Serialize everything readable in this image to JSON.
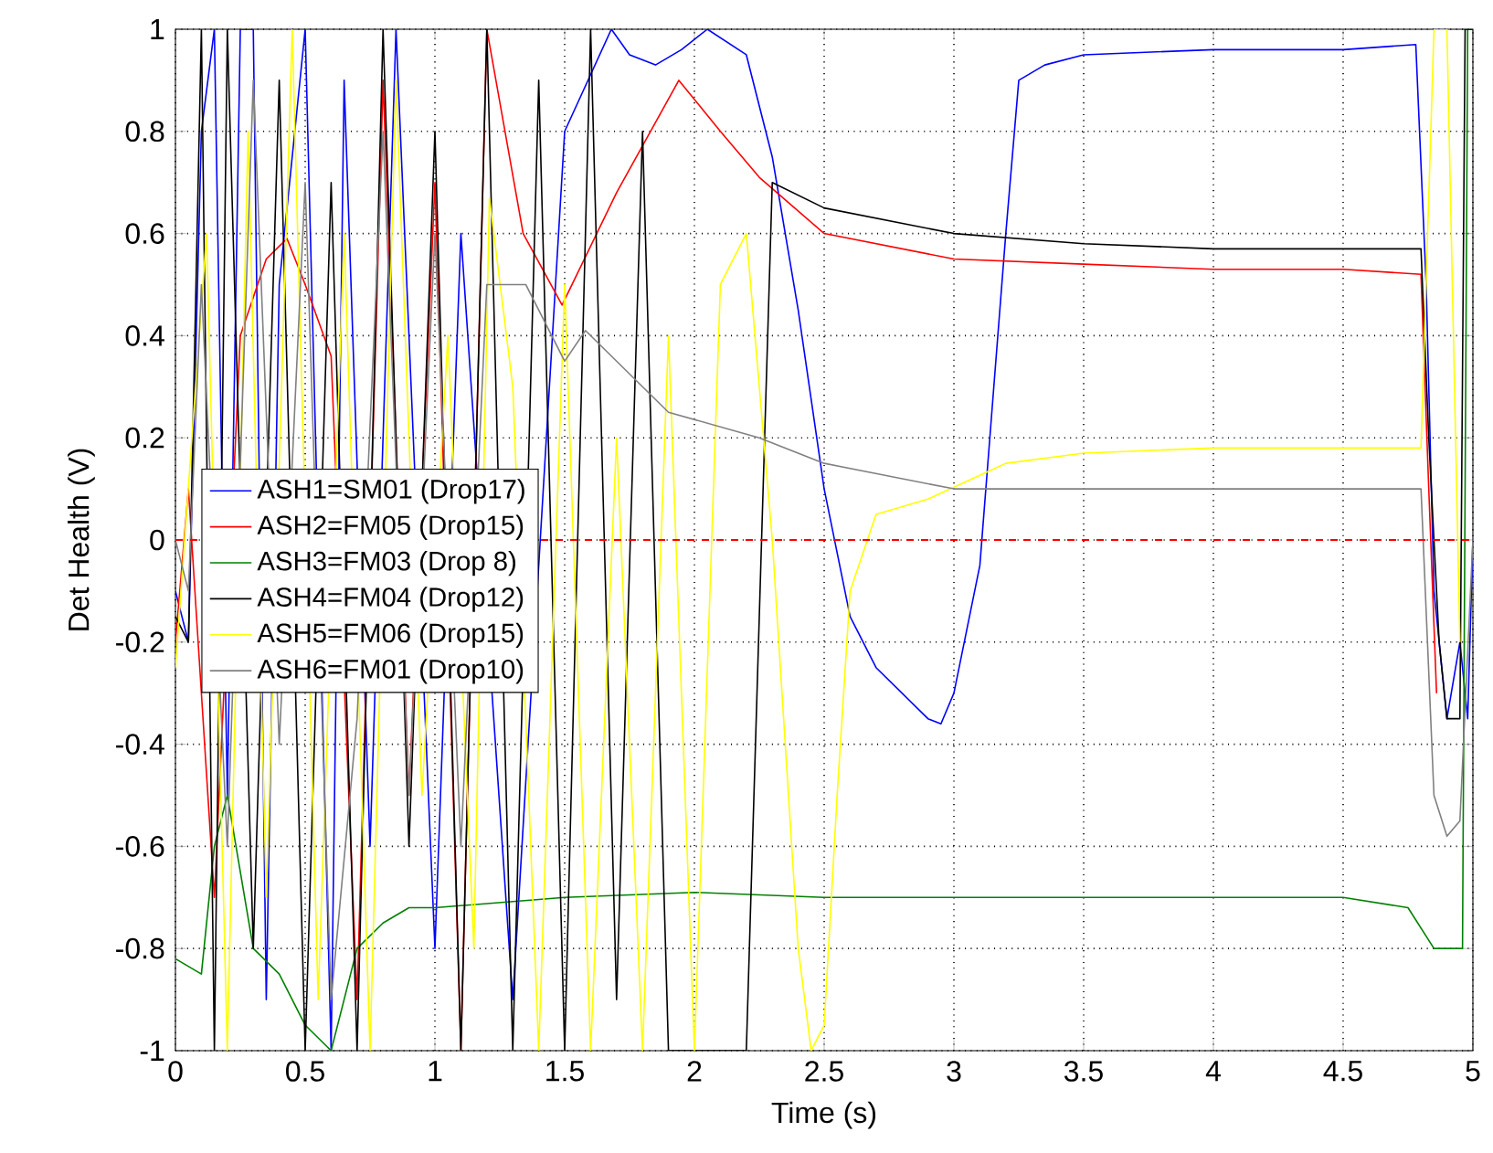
{
  "chart_data": {
    "type": "line",
    "xlabel": "Time (s)",
    "ylabel": "Det Health (V)",
    "xlim": [
      0,
      5
    ],
    "ylim": [
      -1,
      1
    ],
    "xticks": [
      0,
      0.5,
      1,
      1.5,
      2,
      2.5,
      3,
      3.5,
      4,
      4.5,
      5
    ],
    "yticks": [
      -1,
      -0.8,
      -0.6,
      -0.4,
      -0.2,
      0,
      0.2,
      0.4,
      0.6,
      0.8,
      1
    ],
    "grid": true,
    "legend": "left",
    "line_style": "solid",
    "ref_lines": [
      {
        "axis": "y",
        "value": 0,
        "color": "#ff0000",
        "line_style": "dashed"
      }
    ],
    "series": [
      {
        "name": "ASH1=SM01 (Drop17)",
        "color": "#0000ff",
        "x": [
          0,
          0.05,
          0.1,
          0.15,
          0.2,
          0.25,
          0.3,
          0.35,
          0.4,
          0.5,
          0.6,
          0.65,
          0.75,
          0.85,
          1.0,
          1.1,
          1.3,
          1.5,
          1.68,
          1.75,
          1.85,
          1.95,
          2.05,
          2.2,
          2.3,
          2.4,
          2.5,
          2.6,
          2.7,
          2.8,
          2.9,
          2.95,
          3.0,
          3.1,
          3.2,
          3.25,
          3.35,
          3.5,
          4.0,
          4.5,
          4.78,
          4.82,
          4.85,
          4.9,
          4.95,
          4.98,
          5.0
        ],
        "values": [
          -0.1,
          -0.2,
          0.8,
          1,
          -0.5,
          1,
          1,
          -0.9,
          0.5,
          1,
          -1,
          0.9,
          -0.6,
          1,
          -0.8,
          0.6,
          -0.9,
          0.8,
          1,
          0.95,
          0.93,
          0.96,
          1,
          0.95,
          0.75,
          0.45,
          0.1,
          -0.15,
          -0.25,
          -0.3,
          -0.35,
          -0.36,
          -0.3,
          -0.05,
          0.6,
          0.9,
          0.93,
          0.95,
          0.96,
          0.96,
          0.97,
          0.5,
          -0.1,
          -0.35,
          -0.2,
          -0.35,
          0
        ]
      },
      {
        "name": "ASH2=FM05 (Drop15)",
        "color": "#ff0000",
        "x": [
          0,
          0.05,
          0.15,
          0.25,
          0.35,
          0.43,
          0.5,
          0.6,
          0.7,
          0.8,
          0.9,
          1.0,
          1.1,
          1.2,
          1.34,
          1.49,
          1.7,
          1.94,
          2.1,
          2.25,
          2.5,
          3.0,
          3.5,
          4.0,
          4.5,
          4.8,
          4.83,
          4.86
        ],
        "values": [
          -0.2,
          0.1,
          -0.7,
          0.4,
          0.55,
          0.59,
          0.5,
          0.36,
          -0.9,
          0.9,
          -0.5,
          0.7,
          -1,
          1,
          0.6,
          0.46,
          0.68,
          0.9,
          0.8,
          0.71,
          0.6,
          0.55,
          0.54,
          0.53,
          0.53,
          0.52,
          0.1,
          -0.3
        ]
      },
      {
        "name": "ASH3=FM03 (Drop 8)",
        "color": "#008000",
        "x": [
          0,
          0.1,
          0.15,
          0.2,
          0.3,
          0.4,
          0.5,
          0.6,
          0.7,
          0.8,
          0.9,
          1.0,
          1.5,
          2.0,
          2.5,
          3.0,
          3.5,
          4.0,
          4.5,
          4.75,
          4.85,
          4.96,
          4.98,
          5.0
        ],
        "values": [
          -0.82,
          -0.85,
          -0.6,
          -0.5,
          -0.8,
          -0.85,
          -0.95,
          -1,
          -0.8,
          -0.75,
          -0.72,
          -0.72,
          -0.7,
          -0.69,
          -0.7,
          -0.7,
          -0.7,
          -0.7,
          -0.7,
          -0.72,
          -0.8,
          -0.8,
          1,
          1
        ]
      },
      {
        "name": "ASH4=FM04 (Drop12)",
        "color": "#000000",
        "x": [
          0,
          0.05,
          0.1,
          0.15,
          0.2,
          0.3,
          0.4,
          0.5,
          0.6,
          0.7,
          0.8,
          0.9,
          1.0,
          1.1,
          1.2,
          1.3,
          1.4,
          1.5,
          1.6,
          1.7,
          1.8,
          1.9,
          2.0,
          2.1,
          2.2,
          2.3,
          2.5,
          3.0,
          3.5,
          4.0,
          4.5,
          4.8,
          4.83,
          4.87,
          4.9,
          4.95,
          4.97,
          5.0
        ],
        "values": [
          -0.15,
          -0.2,
          1,
          -1,
          1,
          -0.8,
          0.9,
          -1,
          0.7,
          -1,
          1,
          -0.6,
          0.8,
          -1,
          1,
          -1,
          0.9,
          -1,
          1,
          -0.9,
          0.8,
          -1,
          -1,
          -1,
          -1,
          0.7,
          0.65,
          0.6,
          0.58,
          0.57,
          0.57,
          0.57,
          0.2,
          -0.2,
          -0.35,
          -0.35,
          1,
          1
        ]
      },
      {
        "name": "ASH5=FM06 (Drop15)",
        "color": "#ffff00",
        "x": [
          0,
          0.12,
          0.2,
          0.28,
          0.35,
          0.45,
          0.55,
          0.65,
          0.75,
          0.85,
          0.95,
          1.05,
          1.15,
          1.21,
          1.3,
          1.4,
          1.5,
          1.6,
          1.7,
          1.8,
          1.9,
          2.0,
          2.1,
          2.2,
          2.3,
          2.4,
          2.45,
          2.5,
          2.55,
          2.6,
          2.7,
          2.9,
          3.2,
          3.5,
          4.0,
          4.5,
          4.8,
          4.85,
          4.9,
          4.95
        ],
        "values": [
          -0.25,
          0.6,
          -1,
          0.8,
          -0.7,
          1,
          -0.9,
          0.6,
          -1,
          0.9,
          -0.5,
          0.4,
          -0.8,
          0.67,
          0.3,
          -1,
          0.5,
          -1,
          0.2,
          -1,
          0.4,
          -1,
          0.5,
          0.6,
          0.0,
          -0.8,
          -1,
          -0.95,
          -0.5,
          -0.1,
          0.05,
          0.08,
          0.15,
          0.17,
          0.18,
          0.18,
          0.18,
          1,
          1,
          -0.2
        ]
      },
      {
        "name": "ASH6=FM01 (Drop10)",
        "color": "#808080",
        "x": [
          0,
          0.05,
          0.1,
          0.2,
          0.3,
          0.4,
          0.5,
          0.6,
          0.7,
          0.8,
          0.9,
          1.0,
          1.1,
          1.2,
          1.35,
          1.5,
          1.58,
          1.9,
          2.25,
          2.5,
          3.0,
          3.5,
          4.0,
          4.5,
          4.8,
          4.85,
          4.9,
          4.95,
          5.0
        ],
        "values": [
          0.0,
          -0.1,
          0.5,
          -0.6,
          0.9,
          -0.4,
          0.7,
          -0.9,
          -0.35,
          0.8,
          -0.5,
          0.6,
          -0.6,
          0.5,
          0.5,
          0.35,
          0.41,
          0.25,
          0.2,
          0.15,
          0.1,
          0.1,
          0.1,
          0.1,
          0.1,
          -0.5,
          -0.58,
          -0.55,
          0
        ]
      }
    ]
  }
}
